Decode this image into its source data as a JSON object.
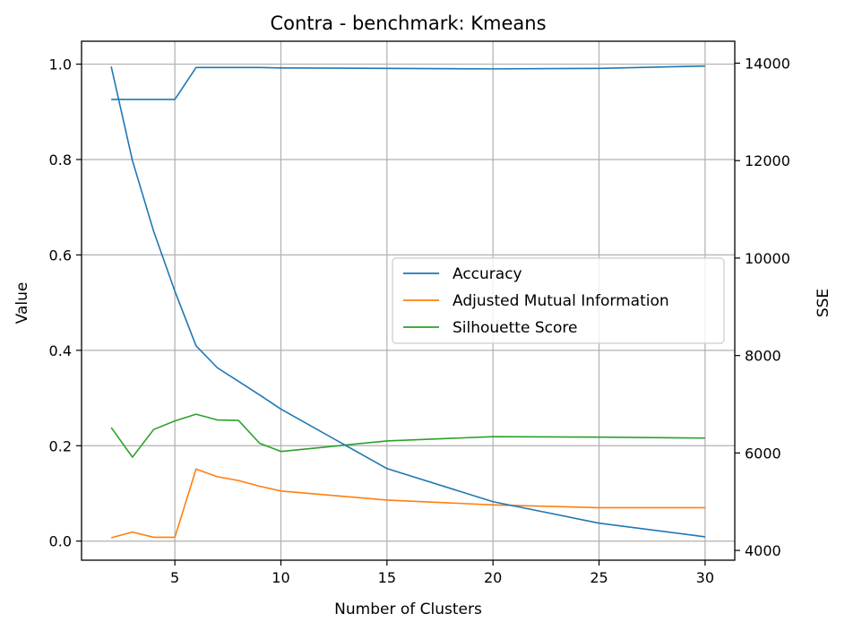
{
  "chart_data": {
    "type": "line",
    "title": "Contra - benchmark: Kmeans",
    "xlabel": "Number of Clusters",
    "ylabel": "Value",
    "y2label": "SSE",
    "xlim": [
      0.6,
      31.4
    ],
    "ylim": [
      -0.04,
      1.048
    ],
    "y2lim": [
      3800,
      14450
    ],
    "xticks": [
      5,
      10,
      15,
      20,
      25,
      30
    ],
    "yticks": [
      0.0,
      0.2,
      0.4,
      0.6,
      0.8,
      1.0
    ],
    "y2ticks": [
      4000,
      6000,
      8000,
      10000,
      12000,
      14000
    ],
    "grid": true,
    "legend_position": "center-right",
    "series": [
      {
        "name": "Accuracy",
        "axis": "left",
        "color": "#1f77b4",
        "x": [
          2,
          3,
          4,
          5,
          6,
          7,
          8,
          9,
          10,
          15,
          20,
          25,
          30
        ],
        "values": [
          0.926,
          0.926,
          0.926,
          0.926,
          0.993,
          0.993,
          0.993,
          0.993,
          0.992,
          0.991,
          0.99,
          0.991,
          0.996
        ]
      },
      {
        "name": "Adjusted Mutual Information",
        "axis": "left",
        "color": "#ff7f0e",
        "x": [
          2,
          3,
          4,
          5,
          6,
          7,
          8,
          9,
          10,
          15,
          20,
          25,
          30
        ],
        "values": [
          0.007,
          0.019,
          0.008,
          0.008,
          0.151,
          0.135,
          0.127,
          0.115,
          0.105,
          0.086,
          0.076,
          0.07,
          0.07
        ]
      },
      {
        "name": "Silhouette Score",
        "axis": "left",
        "color": "#2ca02c",
        "x": [
          2,
          3,
          4,
          5,
          6,
          7,
          8,
          9,
          10,
          15,
          20,
          25,
          30
        ],
        "values": [
          0.238,
          0.176,
          0.234,
          0.252,
          0.266,
          0.254,
          0.253,
          0.205,
          0.188,
          0.21,
          0.219,
          0.218,
          0.216
        ]
      },
      {
        "axis": "right",
        "color": "#1f77b4",
        "x": [
          2,
          3,
          4,
          5,
          6,
          7,
          8,
          9,
          10,
          15,
          20,
          25,
          30
        ],
        "values": [
          13930,
          12000,
          10550,
          9320,
          8200,
          7750,
          7470,
          7190,
          6900,
          5680,
          5000,
          4560,
          4280
        ]
      }
    ]
  }
}
